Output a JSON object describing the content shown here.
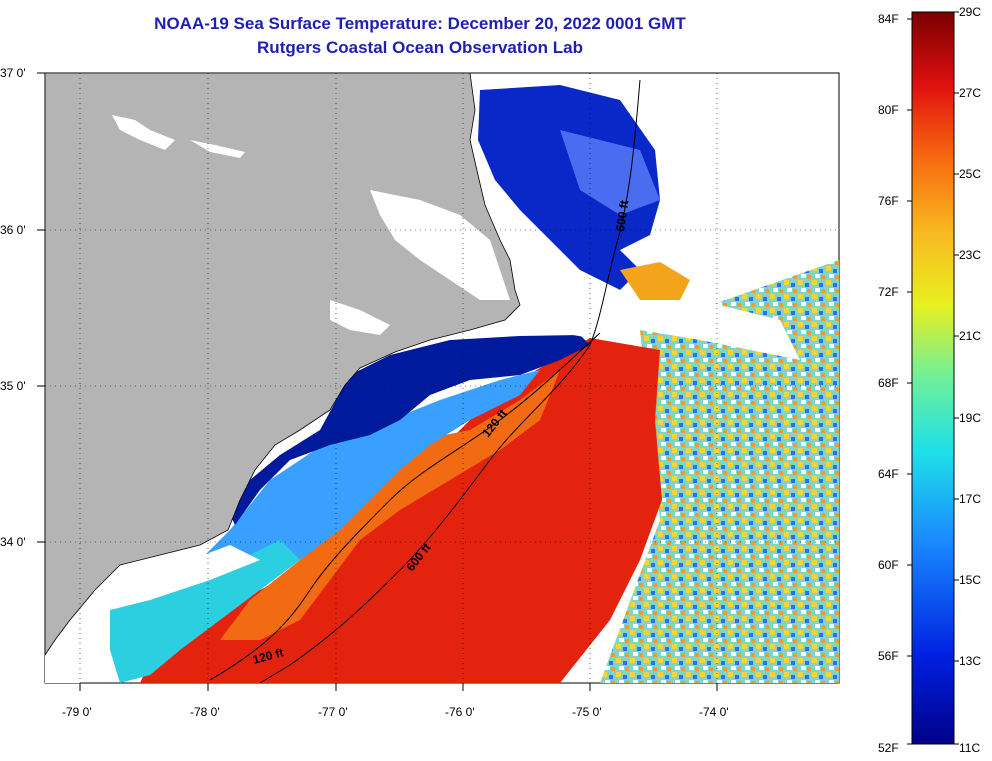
{
  "title": {
    "line1": "NOAA-19 Sea Surface Temperature:  December 20, 2022 0001 GMT",
    "line2": "Rutgers Coastal Ocean Observation Lab"
  },
  "colors": {
    "land": "#b4b4b4",
    "no_data": "#ffffff",
    "cold_nearshore": "#001a9e",
    "title_blue": "#1f1fb4"
  },
  "axes": {
    "lat_labels": [
      "37 0'",
      "36 0'",
      "35 0'",
      "34 0'"
    ],
    "lon_labels": [
      "-79 0'",
      "-78 0'",
      "-77 0'",
      "-76 0'",
      "-75 0'",
      "-74 0'"
    ]
  },
  "contours": [
    {
      "label": "600 ft"
    },
    {
      "label": "120 ft"
    },
    {
      "label": "600 ft"
    },
    {
      "label": "120 ft"
    }
  ],
  "colorbar": {
    "fahrenheit": [
      "84F",
      "80F",
      "76F",
      "72F",
      "68F",
      "64F",
      "60F",
      "56F",
      "52F"
    ],
    "celsius": [
      "29C",
      "27C",
      "25C",
      "23C",
      "21C",
      "19C",
      "17C",
      "15C",
      "13C",
      "11C"
    ],
    "min_c": 11,
    "max_c": 29
  }
}
